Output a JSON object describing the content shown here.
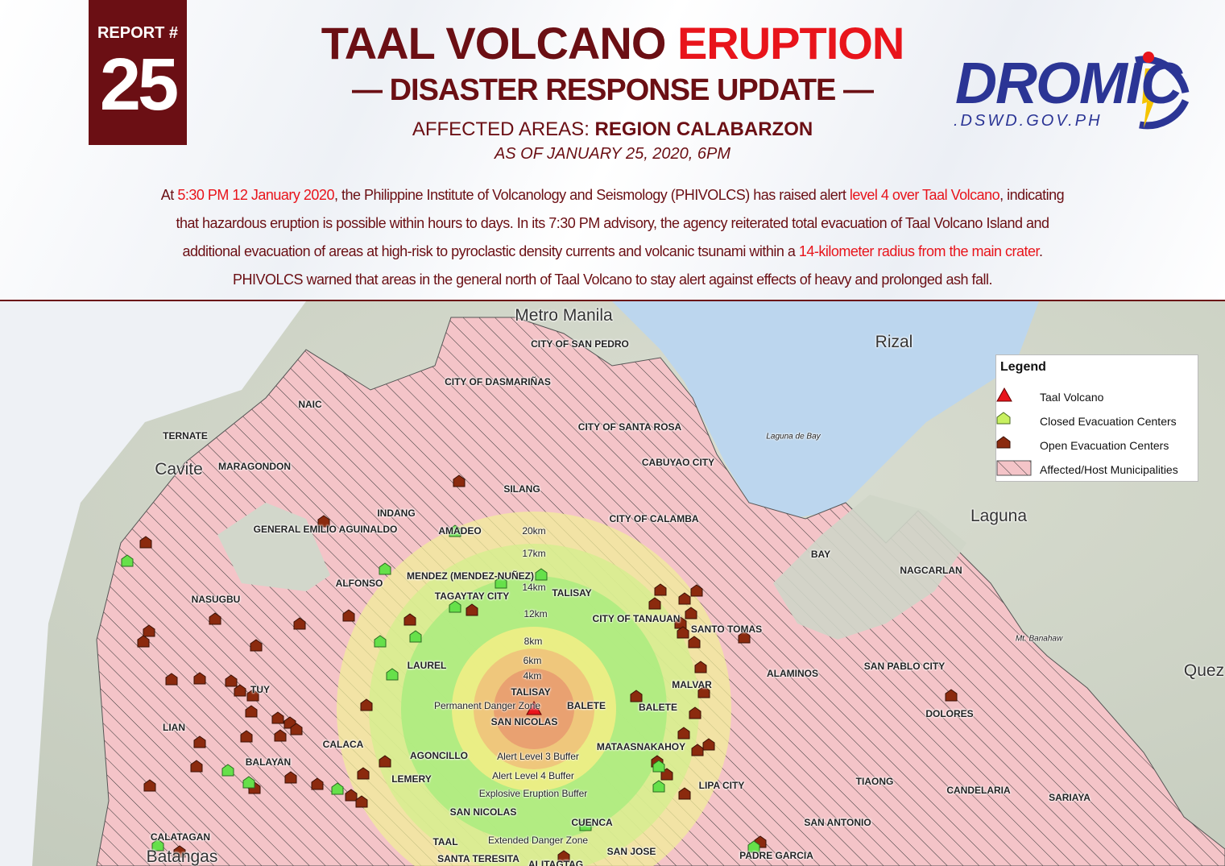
{
  "report": {
    "label": "REPORT #",
    "number": "25"
  },
  "title": {
    "part1": "TAAL VOLCANO ",
    "part2": "ERUPTION",
    "subtitle": "— DISASTER RESPONSE UPDATE —",
    "areas_label": "AFFECTED AREAS: ",
    "areas_value": "REGION CALABARZON",
    "as_of": "AS OF JANUARY 25, 2020, 6PM"
  },
  "logo": {
    "text": "DROMIC",
    "url_text": ".DSWD.GOV.PH"
  },
  "paragraph": [
    [
      {
        "t": "At ",
        "red": false
      },
      {
        "t": "5:30 PM 12 January 2020",
        "red": true
      },
      {
        "t": ", the Philippine Institute of Volcanology and Seismology (PHIVOLCS) has raised alert ",
        "red": false
      },
      {
        "t": "level 4 over Taal Volcano",
        "red": true
      },
      {
        "t": ", indicating",
        "red": false
      }
    ],
    [
      {
        "t": "that hazardous eruption is possible within hours to days.  In its 7:30 PM advisory, the agency reiterated total evacuation of Taal Volcano Island and",
        "red": false
      }
    ],
    [
      {
        "t": "additional evacuation of areas at high-risk to pyroclastic density currents and volcanic tsunami within a ",
        "red": false
      },
      {
        "t": "14-kilometer radius from the main crater",
        "red": true
      },
      {
        "t": ".",
        "red": false
      }
    ],
    [
      {
        "t": "PHIVOLCS warned that areas in the general north of Taal Volcano to stay alert against effects of heavy and prolonged ash fall.",
        "red": false
      }
    ]
  ],
  "colors": {
    "maroon": "#6b0f14",
    "red": "#e8141b",
    "dromic_blue": "#2b3595",
    "affected_pink": "#f4c4c8",
    "open_center": "#8b2a0e",
    "closed_center": "#66e04a",
    "volcano": "#e8141b",
    "lake": "#bcd6ee"
  },
  "map": {
    "regions": [
      "Metro Manila",
      "Rizal",
      "Laguna",
      "Cavite",
      "Batangas",
      "Quez"
    ],
    "water": [
      "Laguna de Bay"
    ],
    "mountains": [
      "Mt. Banahaw"
    ],
    "municipalities": [
      "CITY OF SAN PEDRO",
      "CITY OF DASMARIÑAS",
      "CITY OF SANTA ROSA",
      "CABUYAO CITY",
      "NAIC",
      "TERNATE",
      "MARAGONDON",
      "SILANG",
      "INDANG",
      "GENERAL EMILIO AGUINALDO",
      "AMADEO",
      "CITY OF CALAMBA",
      "BAY",
      "NAGCARLAN",
      "ALFONSO",
      "MENDEZ (MENDEZ-NUÑEZ)",
      "TAGAYTAY CITY",
      "TALISAY",
      "NASUGBU",
      "CITY OF TANAUAN",
      "SANTO TOMAS",
      "LAUREL",
      "ALAMINOS",
      "SAN PABLO CITY",
      "MALVAR",
      "TUY",
      "TALISAY",
      "BALETE",
      "BALETE",
      "SAN NICOLAS",
      "DOLORES",
      "LIAN",
      "CALACA",
      "MATAASNAKAHOY",
      "AGONCILLO",
      "BALAYAN",
      "LEMERY",
      "TIAONG",
      "LIPA CITY",
      "CANDELARIA",
      "SARIAYA",
      "SAN NICOLAS",
      "CUENCA",
      "SAN ANTONIO",
      "CALATAGAN",
      "SAN JOSE",
      "SANTA TERESITA",
      "PADRE GARCIA",
      "ALITAGTAG",
      "TAAL"
    ],
    "rings": [
      "20km",
      "17km",
      "14km",
      "12km",
      "8km",
      "6km",
      "4km"
    ],
    "zones": [
      "Permanent Danger Zone",
      "Alert Level 3 Buffer",
      "Alert Level 4 Buffer",
      "Explosive Eruption Buffer",
      "Extended Danger Zone"
    ]
  },
  "legend": {
    "title": "Legend",
    "items": [
      {
        "label": "Taal Volcano",
        "icon": "red-triangle"
      },
      {
        "label": "Closed Evacuation Centers",
        "icon": "green-house"
      },
      {
        "label": "Open Evacuation Centers",
        "icon": "brown-house"
      },
      {
        "label": "Affected/Host Municipalities",
        "icon": "pink-hatch"
      }
    ]
  }
}
